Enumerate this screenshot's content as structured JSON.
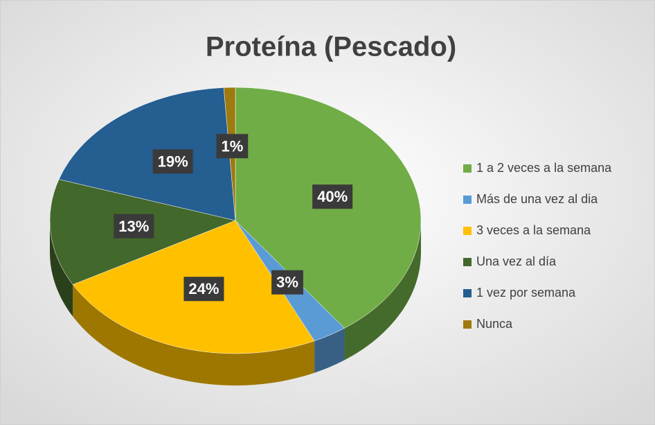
{
  "chart_data": {
    "type": "pie",
    "title": "Proteína (Pescado)",
    "categories": [
      "1 a 2 veces a la semana",
      "Más de una vez al dia",
      "3 veces a la semana",
      "Una vez al día",
      "1 vez por semana",
      "Nunca"
    ],
    "values": [
      40,
      3,
      24,
      13,
      19,
      1
    ],
    "value_labels": [
      "40%",
      "3%",
      "24%",
      "13%",
      "19%",
      "1%"
    ],
    "colors": [
      "#70ad47",
      "#5b9bd5",
      "#ffc000",
      "#43682b",
      "#255e91",
      "#9e7a0f"
    ],
    "legend": "right"
  }
}
